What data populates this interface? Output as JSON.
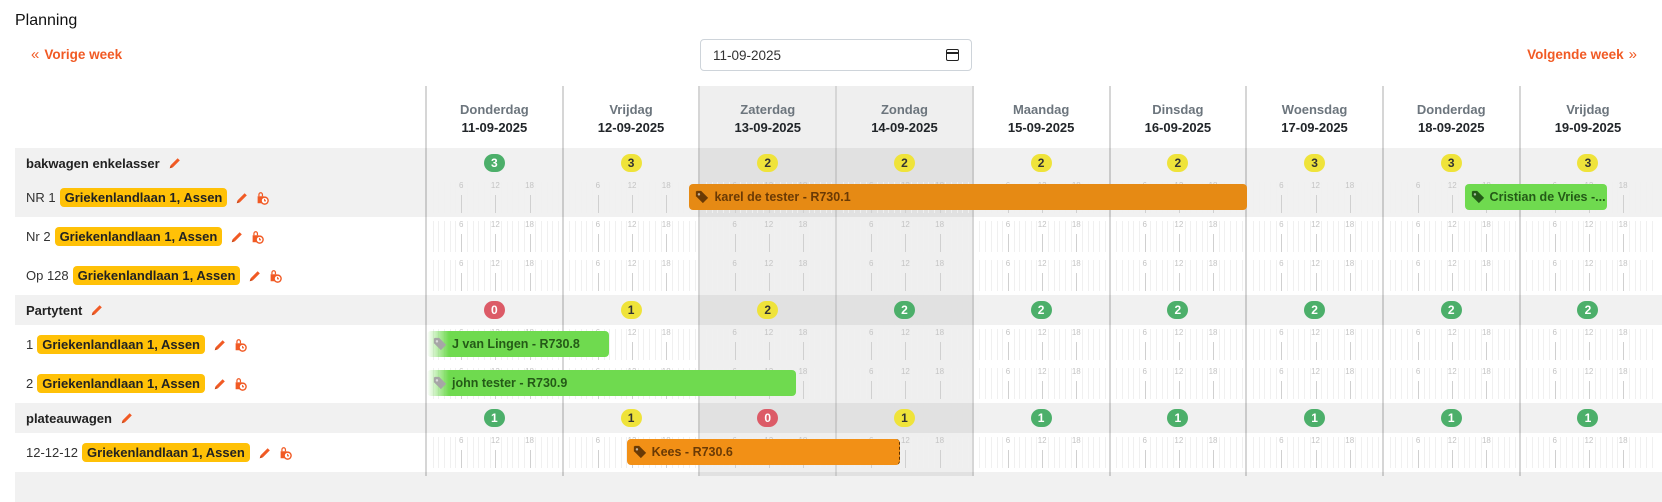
{
  "page": {
    "title": "Planning",
    "prev_week": "Vorige week",
    "next_week": "Volgende week",
    "date_value": "11-09-2025"
  },
  "days": [
    {
      "name": "Donderdag",
      "date": "11-09-2025",
      "weekend": false
    },
    {
      "name": "Vrijdag",
      "date": "12-09-2025",
      "weekend": false
    },
    {
      "name": "Zaterdag",
      "date": "13-09-2025",
      "weekend": true
    },
    {
      "name": "Zondag",
      "date": "14-09-2025",
      "weekend": true
    },
    {
      "name": "Maandag",
      "date": "15-09-2025",
      "weekend": false
    },
    {
      "name": "Dinsdag",
      "date": "16-09-2025",
      "weekend": false
    },
    {
      "name": "Woensdag",
      "date": "17-09-2025",
      "weekend": false
    },
    {
      "name": "Donderdag",
      "date": "18-09-2025",
      "weekend": false
    },
    {
      "name": "Vrijdag",
      "date": "19-09-2025",
      "weekend": false
    }
  ],
  "hour_labels": [
    "6",
    "12",
    "18"
  ],
  "colors": {
    "accent": "#f15a24",
    "location_badge": "#ffc107",
    "count_green": "#4caf6a",
    "count_yellow": "#efe33a",
    "count_red": "#dc5b67",
    "booking_orange": "#e68a14",
    "booking_green": "#6fda4f"
  },
  "groups": [
    {
      "name": "bakwagen enkelasser",
      "counts": [
        {
          "value": "3",
          "status": "green"
        },
        {
          "value": "3",
          "status": "yellow"
        },
        {
          "value": "2",
          "status": "yellow"
        },
        {
          "value": "2",
          "status": "yellow"
        },
        {
          "value": "2",
          "status": "yellow"
        },
        {
          "value": "2",
          "status": "yellow"
        },
        {
          "value": "3",
          "status": "yellow"
        },
        {
          "value": "3",
          "status": "yellow"
        },
        {
          "value": "3",
          "status": "yellow"
        }
      ],
      "items": [
        {
          "name": "NR 1",
          "location": "Griekenlandlaan 1, Assen",
          "hover": true,
          "bookings": [
            {
              "label": "karel de tester - R730.1",
              "start": 1.92,
              "end": 6.0,
              "style": "orange"
            },
            {
              "label": "Cristian de Vries -...",
              "start": 7.59,
              "end": 8.63,
              "style": "green"
            }
          ]
        },
        {
          "name": "Nr 2",
          "location": "Griekenlandlaan 1, Assen",
          "bookings": []
        },
        {
          "name": "Op 128",
          "location": "Griekenlandlaan 1, Assen",
          "bookings": []
        }
      ]
    },
    {
      "name": "Partytent",
      "counts": [
        {
          "value": "0",
          "status": "red"
        },
        {
          "value": "1",
          "status": "yellow"
        },
        {
          "value": "2",
          "status": "yellow"
        },
        {
          "value": "2",
          "status": "green"
        },
        {
          "value": "2",
          "status": "green"
        },
        {
          "value": "2",
          "status": "green"
        },
        {
          "value": "2",
          "status": "green"
        },
        {
          "value": "2",
          "status": "green"
        },
        {
          "value": "2",
          "status": "green"
        }
      ],
      "items": [
        {
          "name": "1",
          "location": "Griekenlandlaan 1, Assen",
          "bookings": [
            {
              "label": "J van Lingen - R730.8",
              "start": 0.0,
              "end": 1.33,
              "style": "green fade-left"
            }
          ]
        },
        {
          "name": "2",
          "location": "Griekenlandlaan 1, Assen",
          "bookings": [
            {
              "label": "john tester - R730.9",
              "start": 0.0,
              "end": 2.7,
              "style": "green fade-left"
            }
          ]
        }
      ]
    },
    {
      "name": "plateauwagen",
      "counts": [
        {
          "value": "1",
          "status": "green"
        },
        {
          "value": "1",
          "status": "yellow"
        },
        {
          "value": "0",
          "status": "red"
        },
        {
          "value": "1",
          "status": "yellow"
        },
        {
          "value": "1",
          "status": "green"
        },
        {
          "value": "1",
          "status": "green"
        },
        {
          "value": "1",
          "status": "green"
        },
        {
          "value": "1",
          "status": "green"
        },
        {
          "value": "1",
          "status": "green"
        }
      ],
      "items": [
        {
          "name": "12-12-12",
          "location": "Griekenlandlaan 1, Assen",
          "bookings": [
            {
              "label": "Kees - R730.6",
              "start": 1.46,
              "end": 3.46,
              "style": "orange2"
            }
          ]
        }
      ]
    }
  ],
  "icons": {
    "prev": "chevrons-left-icon",
    "next": "chevrons-right-icon",
    "calendar": "calendar-icon",
    "edit": "pencil-icon",
    "schedule": "clock-bag-icon",
    "booking": "tag-icon"
  }
}
